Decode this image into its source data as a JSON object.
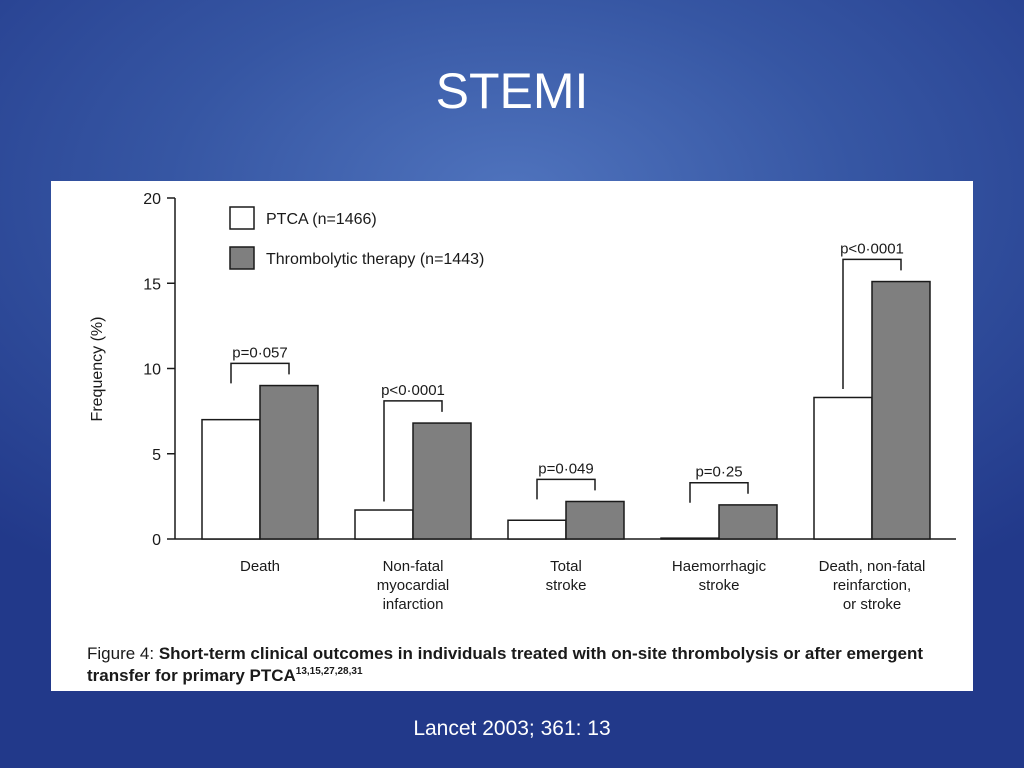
{
  "slide": {
    "title": "STEMI",
    "citation": "Lancet  2003; 361: 13"
  },
  "caption": {
    "prefix": "Figure 4: ",
    "bold_text": "Short-term clinical outcomes in individuals treated with on-site thrombolysis or after emergent transfer for primary PTCA",
    "refs": "13,15,27,28,31"
  },
  "colors": {
    "ptca_fill": "#ffffff",
    "thrombolytic_fill": "#7f7f7f",
    "stroke": "#1a1a1a"
  },
  "chart_data": {
    "type": "bar",
    "title": "",
    "xlabel": "",
    "ylabel": "Frequency (%)",
    "ylim": [
      0,
      20
    ],
    "yticks": [
      0,
      5,
      10,
      15,
      20
    ],
    "categories": [
      [
        "Death"
      ],
      [
        "Non-fatal",
        "myocardial",
        "infarction"
      ],
      [
        "Total",
        "stroke"
      ],
      [
        "Haemorrhagic",
        "stroke"
      ],
      [
        "Death, non-fatal",
        "reinfarction,",
        "or stroke"
      ]
    ],
    "series": [
      {
        "name": "PTCA (n=1466)",
        "values": [
          7.0,
          1.7,
          1.1,
          0.05,
          8.3
        ]
      },
      {
        "name": "Thrombolytic therapy (n=1443)",
        "values": [
          9.0,
          6.8,
          2.2,
          2.0,
          15.1
        ]
      }
    ],
    "pvalues": [
      "p=0·057",
      "p<0·0001",
      "p=0·049",
      "p=0·25",
      "p<0·0001"
    ],
    "legend_position": "top-left",
    "grid": false
  }
}
